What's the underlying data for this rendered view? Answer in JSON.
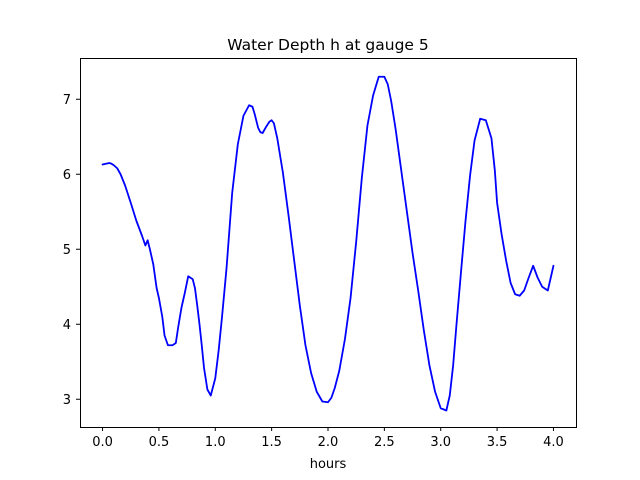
{
  "chart_data": {
    "type": "line",
    "title": "Water Depth h at gauge 5",
    "xlabel": "hours",
    "ylabel": "",
    "xlim": [
      -0.2,
      4.2
    ],
    "ylim": [
      2.63,
      7.55
    ],
    "xticks": [
      0.0,
      0.5,
      1.0,
      1.5,
      2.0,
      2.5,
      3.0,
      3.5,
      4.0
    ],
    "xtick_labels": [
      "0.0",
      "0.5",
      "1.0",
      "1.5",
      "2.0",
      "2.5",
      "3.0",
      "3.5",
      "4.0"
    ],
    "yticks": [
      3,
      4,
      5,
      6,
      7
    ],
    "ytick_labels": [
      "3",
      "4",
      "5",
      "6",
      "7"
    ],
    "grid": false,
    "legend": "none",
    "series": [
      {
        "color": "#0000ff",
        "x": [
          0.0,
          0.03,
          0.06,
          0.08,
          0.1,
          0.13,
          0.16,
          0.2,
          0.25,
          0.3,
          0.35,
          0.38,
          0.4,
          0.42,
          0.45,
          0.48,
          0.5,
          0.53,
          0.55,
          0.58,
          0.62,
          0.65,
          0.67,
          0.7,
          0.73,
          0.76,
          0.8,
          0.82,
          0.84,
          0.86,
          0.88,
          0.9,
          0.93,
          0.96,
          1.0,
          1.03,
          1.06,
          1.1,
          1.15,
          1.2,
          1.25,
          1.3,
          1.33,
          1.35,
          1.38,
          1.4,
          1.42,
          1.45,
          1.48,
          1.5,
          1.52,
          1.55,
          1.6,
          1.65,
          1.7,
          1.75,
          1.8,
          1.85,
          1.9,
          1.95,
          2.0,
          2.03,
          2.06,
          2.1,
          2.15,
          2.2,
          2.25,
          2.3,
          2.35,
          2.4,
          2.45,
          2.5,
          2.53,
          2.56,
          2.6,
          2.65,
          2.7,
          2.75,
          2.8,
          2.85,
          2.9,
          2.95,
          3.0,
          3.05,
          3.08,
          3.11,
          3.14,
          3.18,
          3.22,
          3.26,
          3.3,
          3.35,
          3.4,
          3.45,
          3.48,
          3.5,
          3.54,
          3.58,
          3.62,
          3.66,
          3.7,
          3.74,
          3.78,
          3.82,
          3.86,
          3.9,
          3.95,
          4.0
        ],
        "values": [
          6.13,
          6.14,
          6.15,
          6.14,
          6.12,
          6.08,
          6.0,
          5.85,
          5.62,
          5.38,
          5.18,
          5.05,
          5.12,
          5.0,
          4.8,
          4.48,
          4.35,
          4.1,
          3.85,
          3.72,
          3.72,
          3.75,
          3.95,
          4.22,
          4.42,
          4.64,
          4.6,
          4.48,
          4.25,
          4.0,
          3.72,
          3.42,
          3.13,
          3.05,
          3.28,
          3.65,
          4.1,
          4.75,
          5.75,
          6.4,
          6.78,
          6.92,
          6.9,
          6.8,
          6.62,
          6.56,
          6.55,
          6.63,
          6.7,
          6.72,
          6.68,
          6.48,
          6.02,
          5.45,
          4.85,
          4.25,
          3.72,
          3.35,
          3.1,
          2.97,
          2.96,
          3.02,
          3.15,
          3.38,
          3.8,
          4.35,
          5.1,
          5.95,
          6.65,
          7.05,
          7.3,
          7.3,
          7.2,
          6.98,
          6.6,
          6.05,
          5.5,
          4.95,
          4.45,
          3.92,
          3.45,
          3.1,
          2.88,
          2.85,
          3.05,
          3.45,
          4.0,
          4.7,
          5.38,
          5.98,
          6.45,
          6.74,
          6.72,
          6.48,
          6.05,
          5.62,
          5.2,
          4.85,
          4.55,
          4.4,
          4.38,
          4.45,
          4.62,
          4.78,
          4.62,
          4.5,
          4.45,
          4.78
        ]
      }
    ]
  }
}
